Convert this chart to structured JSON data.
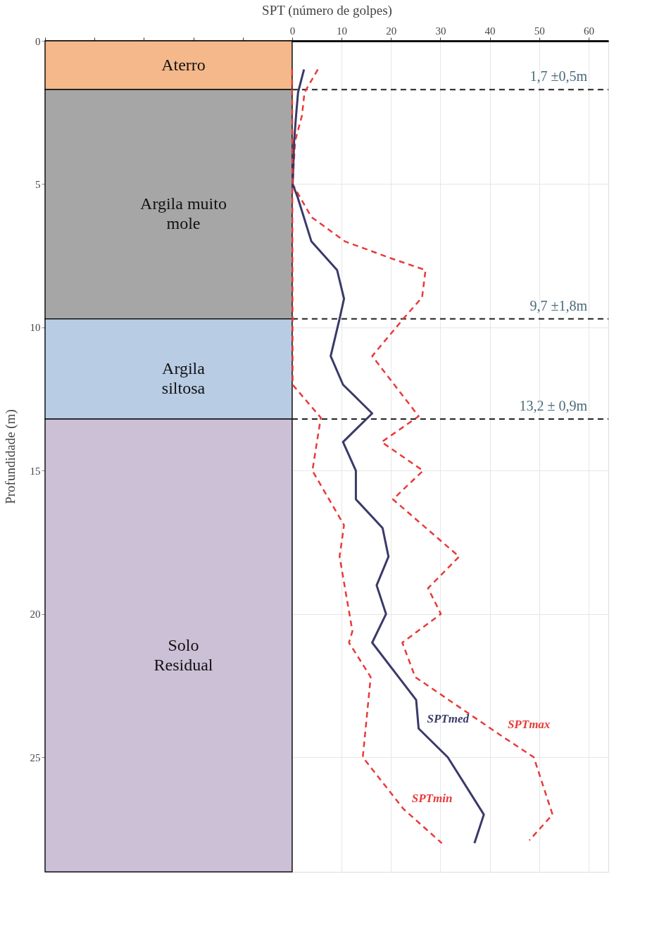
{
  "chart_data": {
    "type": "line",
    "xlabel": "SPT (número de golpes)",
    "ylabel": "Profundidade (m)",
    "xlim": [
      -50,
      64
    ],
    "ylim": [
      29,
      0
    ],
    "xticks": [
      {
        "value": -50,
        "label": null
      },
      {
        "value": -40,
        "label": null
      },
      {
        "value": -30,
        "label": null
      },
      {
        "value": -20,
        "label": null
      },
      {
        "value": -10,
        "label": null
      },
      0,
      10,
      20,
      30,
      40,
      50,
      60
    ],
    "yticks": [
      0,
      5,
      10,
      15,
      20,
      25
    ],
    "grid": true,
    "marker": "none",
    "series": [
      {
        "name": "SPTmax",
        "color": "#e83a3a",
        "line_style": "dashed",
        "x": [
          5.2,
          2.5,
          2.0,
          0.6,
          0.1,
          3.9,
          10.7,
          20.2,
          27.0,
          26.3,
          22.5,
          16.2,
          25.6,
          18.1,
          26.5,
          20.4,
          33.8,
          27.5,
          30.1,
          22.3,
          24.9,
          41.9,
          48.9,
          52.7,
          48.0
        ],
        "values": [
          1.0,
          1.8,
          2.6,
          3.5,
          5.0,
          6.15,
          7.0,
          7.6,
          8.0,
          8.95,
          9.7,
          11.0,
          13.1,
          14.0,
          15.0,
          16.0,
          18.0,
          19.1,
          20.0,
          21.0,
          22.2,
          24.2,
          25.0,
          27.0,
          27.9
        ]
      },
      {
        "name": "SPTmed",
        "color": "#3a3a6a",
        "line_style": "solid",
        "x": [
          2.4,
          1.2,
          0.8,
          0.4,
          0.1,
          1.1,
          3.9,
          9.1,
          10.5,
          9.6,
          7.8,
          10.3,
          16.2,
          10.3,
          12.9,
          12.9,
          18.3,
          19.5,
          17.1,
          19.0,
          16.2,
          25.1,
          25.6,
          31.5,
          38.8,
          36.9
        ],
        "values": [
          1.0,
          1.8,
          2.6,
          3.5,
          5.0,
          5.45,
          7.0,
          8.0,
          9.0,
          9.7,
          11.0,
          12.0,
          13.0,
          14.0,
          15.0,
          16.0,
          17.0,
          18.0,
          19.0,
          20.0,
          21.0,
          23.0,
          24.0,
          25.0,
          27.0,
          28.0
        ]
      },
      {
        "name": "SPTmin",
        "color": "#e83a3a",
        "line_style": "dashed",
        "x": [
          0.0,
          0.1,
          5.8,
          4.1,
          10.5,
          9.6,
          12.2,
          11.5,
          15.9,
          14.3,
          22.5,
          30.3
        ],
        "values": [
          1.0,
          12.0,
          13.15,
          15.0,
          16.9,
          18.0,
          20.6,
          21.0,
          22.2,
          25.0,
          26.8,
          28.0
        ]
      }
    ],
    "ref_lines": [
      {
        "axis": "y",
        "value": 1.7,
        "label": "1,7 ±0,5m",
        "color": "#222222",
        "line_style": "dashed"
      },
      {
        "axis": "y",
        "value": 9.7,
        "label": "9,7 ±1,8m",
        "color": "#222222",
        "line_style": "dashed"
      },
      {
        "axis": "y",
        "value": 13.2,
        "label": "13,2 ± 0,9m",
        "color": "#222222",
        "line_style": "dashed"
      }
    ],
    "bands": [
      {
        "axis": "y",
        "from": 0,
        "to": 1.7,
        "label": "Aterro",
        "color": "#f4b88a"
      },
      {
        "axis": "y",
        "from": 1.7,
        "to": 9.7,
        "label": "Argila muito mole",
        "color": "#a6a6a6"
      },
      {
        "axis": "y",
        "from": 9.7,
        "to": 13.2,
        "label": "Argila siltosa",
        "color": "#b8cce4"
      },
      {
        "axis": "y",
        "from": 13.2,
        "to": 29,
        "label": "Solo Residual",
        "color": "#ccc0d6"
      }
    ]
  }
}
